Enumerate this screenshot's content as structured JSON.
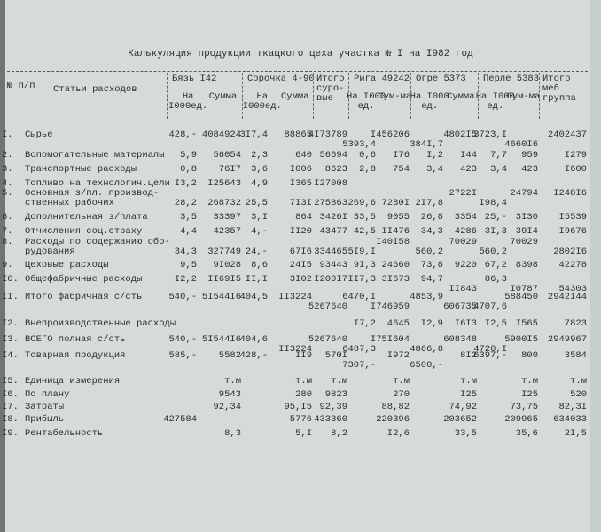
{
  "title": "Калькуляция продукции ткацкого цеха участка № I на I982 год",
  "header": {
    "num": "№ п/п",
    "item": "Статьи расходов",
    "groups": [
      {
        "name": "Бязь I42",
        "cols": [
          "На I000ед.",
          "Сумма"
        ]
      },
      {
        "name": "Сорочка 4-90",
        "cols": [
          "На I000ед.",
          "Сумма"
        ]
      },
      {
        "name": "Итого суро-вые",
        "cols": []
      },
      {
        "name": "Рига 49242",
        "cols": [
          "На I000 ед.",
          "Сум-ма"
        ]
      },
      {
        "name": "Огре 5373",
        "cols": [
          "На I000 ед.",
          "Сумма"
        ]
      },
      {
        "name": "Перле 5383",
        "cols": [
          "На I000 ед.",
          "Сум-ма"
        ]
      },
      {
        "name": "Итого меб группа",
        "cols": []
      }
    ]
  },
  "rows": [
    {
      "num": "I.",
      "label": [
        "Сырье"
      ],
      "cells": [
        "428,-",
        "4084924",
        "3I7,4",
        "88865",
        "4I73789",
        null,
        "I456206",
        null,
        "4802I5",
        "3723,I",
        null,
        "2402437"
      ],
      "cells2": [
        null,
        null,
        null,
        null,
        null,
        "5393,4",
        null,
        "384I,7",
        null,
        null,
        "4660I6",
        null
      ]
    },
    {
      "num": "2.",
      "label": [
        "Вспомогательные материалы"
      ],
      "cells": [
        "5,9",
        "56054",
        "2,3",
        "640",
        "56694",
        "0,6",
        "I76",
        "I,2",
        "I44",
        "7,7",
        "959",
        "I279"
      ]
    },
    {
      "num": "3.",
      "label": [
        "Транспортные расходы"
      ],
      "cells": [
        "0,8",
        "76I7",
        "3,6",
        "I006",
        "8623",
        "2,8",
        "754",
        "3,4",
        "423",
        "3,4",
        "423",
        "I600"
      ]
    },
    {
      "num": "4.",
      "label": [
        "Топливо на технологич.цели"
      ],
      "cells": [
        "I3,2",
        "I25643",
        "4,9",
        "I365",
        "I27008",
        null,
        null,
        null,
        null,
        null,
        null,
        null
      ]
    },
    {
      "num": "5.",
      "label": [
        "Основная з/пл. производ-",
        "ственных рабочих"
      ],
      "cells": [
        null,
        null,
        null,
        null,
        null,
        null,
        null,
        null,
        "2722I",
        null,
        "24794",
        "I248I6"
      ],
      "cells2": [
        "28,2",
        "268732",
        "25,5",
        "7I3I",
        "275863",
        "269,6",
        "7280I",
        "2I7,8",
        null,
        "I98,4",
        null,
        null
      ]
    },
    {
      "num": "6.",
      "label": [
        "Дополнительная з/плата"
      ],
      "cells": [
        "3,5",
        "33397",
        "3,I",
        "864",
        "3426I",
        "33,5",
        "9055",
        "26,8",
        "3354",
        "25,-",
        "3I30",
        "I5539"
      ]
    },
    {
      "num": "7.",
      "label": [
        "Отчисления соц.страху"
      ],
      "cells": [
        "4,4",
        "42357",
        "4,-",
        "II20",
        "43477",
        "42,5",
        "II476",
        "34,3",
        "4286",
        "3I,3",
        "39I4",
        "I9676"
      ]
    },
    {
      "num": "8.",
      "label": [
        "Расходы по содержанию обо-",
        "рудования"
      ],
      "cells": [
        null,
        null,
        null,
        null,
        null,
        null,
        "I40I58",
        null,
        "70029",
        null,
        "70029",
        null
      ],
      "cells2": [
        "34,3",
        "327749",
        "24,-",
        "67I6",
        "334465",
        "5I9,I",
        null,
        "560,2",
        null,
        "560,2",
        null,
        "2802I6"
      ]
    },
    {
      "num": "9.",
      "label": [
        "Цеховые расходы"
      ],
      "cells": [
        "9,5",
        "9I028",
        "8,6",
        "24I5",
        "93443",
        "9I,3",
        "24660",
        "73,8",
        "9220",
        "67,2",
        "8398",
        "42278"
      ]
    },
    {
      "num": "I0.",
      "label": [
        "Общефабричные расходы"
      ],
      "cells": [
        "I2,2",
        "II69I5",
        "II,I",
        "3I02",
        "I200I7",
        "II7,3",
        "3I673",
        "94,7",
        null,
        "86,3",
        null,
        null
      ],
      "cells2": [
        null,
        null,
        null,
        null,
        null,
        null,
        null,
        null,
        "II843",
        null,
        "I0787",
        "54303"
      ]
    },
    {
      "num": "II.",
      "label": [
        "Итого фабричная с/сть"
      ],
      "cells": [
        "540,-",
        "5I544I6",
        "404,5",
        "II3224",
        null,
        "6470,I",
        null,
        "4853,9",
        null,
        null,
        "588450",
        "2942I44"
      ],
      "cells2": [
        null,
        null,
        null,
        null,
        "5267640",
        null,
        "I746959",
        null,
        "606735",
        "4707,6",
        null,
        null
      ]
    },
    {
      "num": "I2.",
      "label": [
        "Внепроизводственные расходы"
      ],
      "cells": [
        null,
        null,
        null,
        null,
        null,
        "I7,2",
        "4645",
        "I2,9",
        "I6I3",
        "I2,5",
        "I565",
        "7823"
      ]
    },
    {
      "num": "I3.",
      "label": [
        "ВСЕГО полная с/сть"
      ],
      "cells": [
        "540,-",
        "5I544I6",
        "404,6",
        null,
        "5267640",
        null,
        "I75I604",
        null,
        "608348",
        null,
        "5900I5",
        "2949967"
      ],
      "cells2": [
        null,
        null,
        null,
        "II3224",
        null,
        "6487,3",
        null,
        "4866,8",
        null,
        "4720,I",
        null,
        null
      ]
    },
    {
      "num": "I4.",
      "label": [
        "Товарная продукция"
      ],
      "cells": [
        "585,-",
        "5582",
        "428,-",
        "II9",
        "570I",
        null,
        "I972",
        null,
        "8I2",
        "6397,-",
        "800",
        "3584"
      ],
      "cells2": [
        null,
        null,
        null,
        null,
        null,
        "7307,-",
        null,
        "6500,-",
        null,
        null,
        null,
        null
      ]
    },
    {
      "num": "I5.",
      "label": [
        "Единица измерения"
      ],
      "cells": [
        null,
        "т.м",
        null,
        "т.м",
        "т.м",
        null,
        "т.м",
        null,
        "т.м",
        null,
        "т.м",
        "т.м"
      ]
    },
    {
      "num": "I6.",
      "label": [
        "По плану"
      ],
      "cells": [
        null,
        "9543",
        null,
        "280",
        "9823",
        null,
        "270",
        null,
        "I25",
        null,
        "I25",
        "520"
      ]
    },
    {
      "num": "I7.",
      "label": [
        "Затраты"
      ],
      "cells": [
        null,
        "92,34",
        null,
        "95,I5",
        "92,39",
        null,
        "88,82",
        null,
        "74,92",
        null,
        "73,75",
        "82,3I"
      ]
    },
    {
      "num": "I8.",
      "label": [
        "Прибыль"
      ],
      "cells": [
        "427584",
        null,
        null,
        "5776",
        "433360",
        null,
        "220396",
        null,
        "203652",
        null,
        "209965",
        "634033"
      ]
    },
    {
      "num": "I9.",
      "label": [
        "Рентабельность"
      ],
      "cells": [
        null,
        "8,3",
        null,
        "5,I",
        "8,2",
        null,
        "I2,6",
        null,
        "33,5",
        null,
        "35,6",
        "2I,5"
      ]
    }
  ]
}
